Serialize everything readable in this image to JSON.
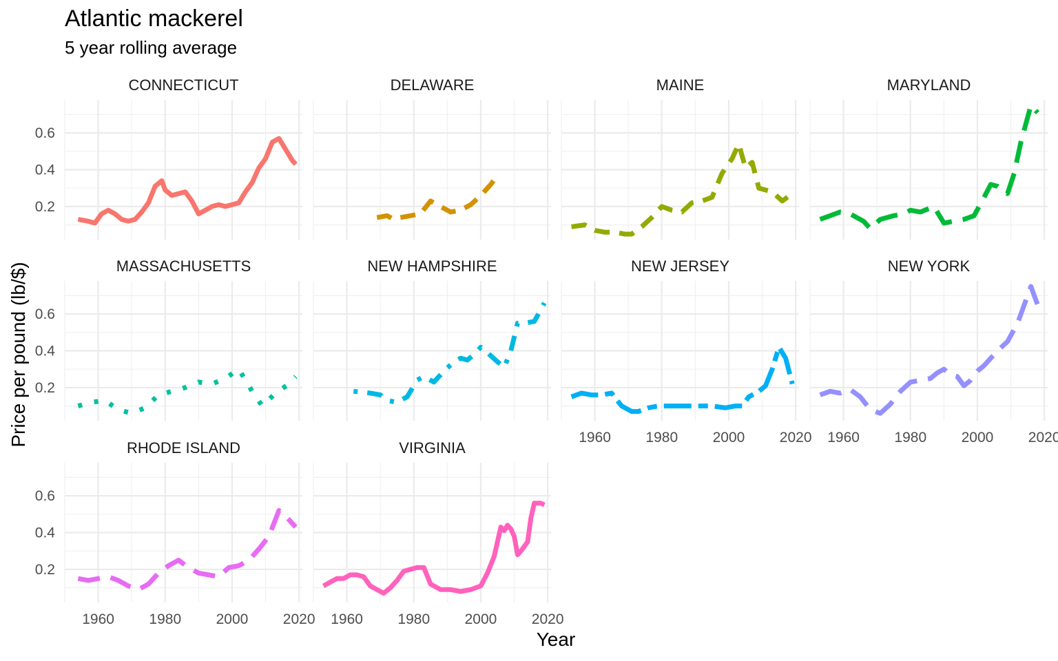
{
  "chart_data": {
    "type": "line",
    "title": "Atlantic mackerel",
    "subtitle": "5 year rolling average",
    "xlabel": "Year",
    "ylabel": "Price per pound (lb/$)",
    "xlim": [
      1950,
      2021
    ],
    "ylim": [
      0.02,
      0.78
    ],
    "x_ticks": [
      1960,
      1980,
      2000,
      2020
    ],
    "y_ticks": [
      0.2,
      0.4,
      0.6
    ],
    "x_tick_labels": [
      "1960",
      "1980",
      "2000",
      "2020"
    ],
    "y_tick_labels": [
      "0.2",
      "0.4",
      "0.6"
    ],
    "grid": true,
    "legend": "none",
    "facets": [
      {
        "name": "CONNECTICUT",
        "color": "#F8766D",
        "dash": "solid",
        "x": [
          1954,
          1957,
          1959,
          1961,
          1963,
          1965,
          1967,
          1969,
          1971,
          1973,
          1975,
          1977,
          1979,
          1980,
          1982,
          1984,
          1986,
          1988,
          1990,
          1992,
          1994,
          1996,
          1998,
          2000,
          2002,
          2004,
          2006,
          2008,
          2010,
          2012,
          2014,
          2016,
          2018,
          2019
        ],
        "y": [
          0.13,
          0.12,
          0.11,
          0.16,
          0.18,
          0.16,
          0.13,
          0.12,
          0.13,
          0.17,
          0.22,
          0.31,
          0.34,
          0.29,
          0.26,
          0.27,
          0.28,
          0.23,
          0.16,
          0.18,
          0.2,
          0.21,
          0.2,
          0.21,
          0.22,
          0.28,
          0.33,
          0.41,
          0.46,
          0.55,
          0.57,
          0.51,
          0.45,
          0.43
        ]
      },
      {
        "name": "DELAWARE",
        "color": "#D39200",
        "dash": "dash",
        "x": [
          1969,
          1972,
          1974,
          1976,
          1979,
          1982,
          1985,
          1988,
          1991,
          1994,
          1997,
          2000,
          2003,
          2005
        ],
        "y": [
          0.14,
          0.15,
          0.13,
          0.14,
          0.15,
          0.16,
          0.23,
          0.2,
          0.17,
          0.18,
          0.21,
          0.26,
          0.32,
          0.37
        ]
      },
      {
        "name": "MAINE",
        "color": "#93AA00",
        "dash": "dash",
        "x": [
          1953,
          1957,
          1960,
          1963,
          1966,
          1969,
          1971,
          1974,
          1977,
          1980,
          1983,
          1986,
          1989,
          1992,
          1995,
          1998,
          2001,
          2003,
          2005,
          2007,
          2009,
          2011,
          2013,
          2016,
          2019
        ],
        "y": [
          0.09,
          0.1,
          0.07,
          0.06,
          0.06,
          0.05,
          0.05,
          0.09,
          0.14,
          0.2,
          0.18,
          0.17,
          0.22,
          0.23,
          0.25,
          0.38,
          0.46,
          0.54,
          0.41,
          0.44,
          0.3,
          0.29,
          0.28,
          0.23,
          0.27
        ]
      },
      {
        "name": "MARYLAND",
        "color": "#00BA38",
        "dash": "longdash",
        "x": [
          1953,
          1956,
          1959,
          1962,
          1966,
          1968,
          1971,
          1975,
          1978,
          1980,
          1983,
          1987,
          1990,
          1993,
          1996,
          1999,
          2002,
          2004,
          2006,
          2009,
          2011,
          2013,
          2016,
          2018
        ],
        "y": [
          0.13,
          0.15,
          0.17,
          0.16,
          0.12,
          0.08,
          0.13,
          0.15,
          0.16,
          0.18,
          0.17,
          0.2,
          0.11,
          0.12,
          0.13,
          0.15,
          0.25,
          0.32,
          0.31,
          0.27,
          0.38,
          0.55,
          0.75,
          0.71
        ]
      },
      {
        "name": "MASSACHUSETTS",
        "color": "#00C19F",
        "dash": "dot",
        "x": [
          1954,
          1958,
          1962,
          1966,
          1970,
          1974,
          1978,
          1982,
          1986,
          1990,
          1994,
          1998,
          2002,
          2006,
          2009,
          2013,
          2017,
          2019
        ],
        "y": [
          0.1,
          0.12,
          0.13,
          0.08,
          0.06,
          0.09,
          0.16,
          0.18,
          0.2,
          0.23,
          0.22,
          0.25,
          0.3,
          0.18,
          0.1,
          0.17,
          0.22,
          0.26
        ]
      },
      {
        "name": "NEW HAMPSHIRE",
        "color": "#00B9E3",
        "dash": "dotdash",
        "x": [
          1962,
          1967,
          1970,
          1972,
          1975,
          1978,
          1981,
          1983,
          1986,
          1989,
          1992,
          1994,
          1996,
          1998,
          2000,
          2002,
          2005,
          2007,
          2009,
          2011,
          2013,
          2016,
          2019
        ],
        "y": [
          0.18,
          0.17,
          0.16,
          0.13,
          0.12,
          0.15,
          0.24,
          0.26,
          0.23,
          0.29,
          0.34,
          0.36,
          0.35,
          0.38,
          0.42,
          0.39,
          0.34,
          0.31,
          0.4,
          0.55,
          0.55,
          0.56,
          0.66
        ]
      },
      {
        "name": "NEW JERSEY",
        "color": "#00B0F6",
        "dash": "twodash",
        "x": [
          1953,
          1956,
          1959,
          1962,
          1965,
          1968,
          1971,
          1973,
          1976,
          1979,
          1983,
          1987,
          1991,
          1995,
          1999,
          2002,
          2004,
          2006,
          2009,
          2011,
          2013,
          2015,
          2017,
          2019
        ],
        "y": [
          0.15,
          0.17,
          0.16,
          0.16,
          0.17,
          0.1,
          0.07,
          0.07,
          0.09,
          0.1,
          0.1,
          0.1,
          0.1,
          0.1,
          0.09,
          0.1,
          0.1,
          0.15,
          0.18,
          0.21,
          0.3,
          0.42,
          0.36,
          0.22
        ]
      },
      {
        "name": "NEW YORK",
        "color": "#9590FF",
        "dash": "longdash",
        "x": [
          1953,
          1956,
          1959,
          1962,
          1965,
          1968,
          1971,
          1974,
          1977,
          1980,
          1983,
          1986,
          1988,
          1990,
          1992,
          1994,
          1996,
          1998,
          2000,
          2002,
          2004,
          2006,
          2009,
          2012,
          2014,
          2016,
          2019
        ],
        "y": [
          0.16,
          0.18,
          0.17,
          0.19,
          0.15,
          0.08,
          0.06,
          0.11,
          0.18,
          0.23,
          0.24,
          0.25,
          0.28,
          0.3,
          0.27,
          0.26,
          0.21,
          0.24,
          0.29,
          0.32,
          0.36,
          0.4,
          0.45,
          0.55,
          0.65,
          0.75,
          0.6
        ]
      },
      {
        "name": "RHODE ISLAND",
        "color": "#E76BF3",
        "dash": "longdash",
        "x": [
          1954,
          1957,
          1960,
          1963,
          1966,
          1969,
          1972,
          1975,
          1978,
          1981,
          1984,
          1987,
          1990,
          1993,
          1996,
          1999,
          2002,
          2005,
          2008,
          2011,
          2014,
          2016,
          2019
        ],
        "y": [
          0.15,
          0.14,
          0.15,
          0.16,
          0.14,
          0.11,
          0.09,
          0.12,
          0.18,
          0.22,
          0.25,
          0.21,
          0.18,
          0.17,
          0.16,
          0.21,
          0.22,
          0.25,
          0.31,
          0.38,
          0.52,
          0.49,
          0.43
        ]
      },
      {
        "name": "VIRGINIA",
        "color": "#FF62BC",
        "dash": "solid",
        "x": [
          1953,
          1955,
          1957,
          1959,
          1961,
          1963,
          1965,
          1967,
          1969,
          1971,
          1973,
          1975,
          1977,
          1979,
          1981,
          1983,
          1985,
          1988,
          1991,
          1994,
          1997,
          2000,
          2002,
          2004,
          2006,
          2007,
          2008,
          2009,
          2010,
          2011,
          2012,
          2014,
          2015,
          2016,
          2017,
          2018,
          2019
        ],
        "y": [
          0.11,
          0.13,
          0.15,
          0.15,
          0.17,
          0.17,
          0.16,
          0.11,
          0.09,
          0.07,
          0.1,
          0.14,
          0.19,
          0.2,
          0.21,
          0.21,
          0.12,
          0.09,
          0.09,
          0.08,
          0.09,
          0.11,
          0.18,
          0.27,
          0.43,
          0.41,
          0.44,
          0.42,
          0.38,
          0.28,
          0.3,
          0.35,
          0.48,
          0.56,
          0.56,
          0.56,
          0.55
        ]
      }
    ]
  }
}
